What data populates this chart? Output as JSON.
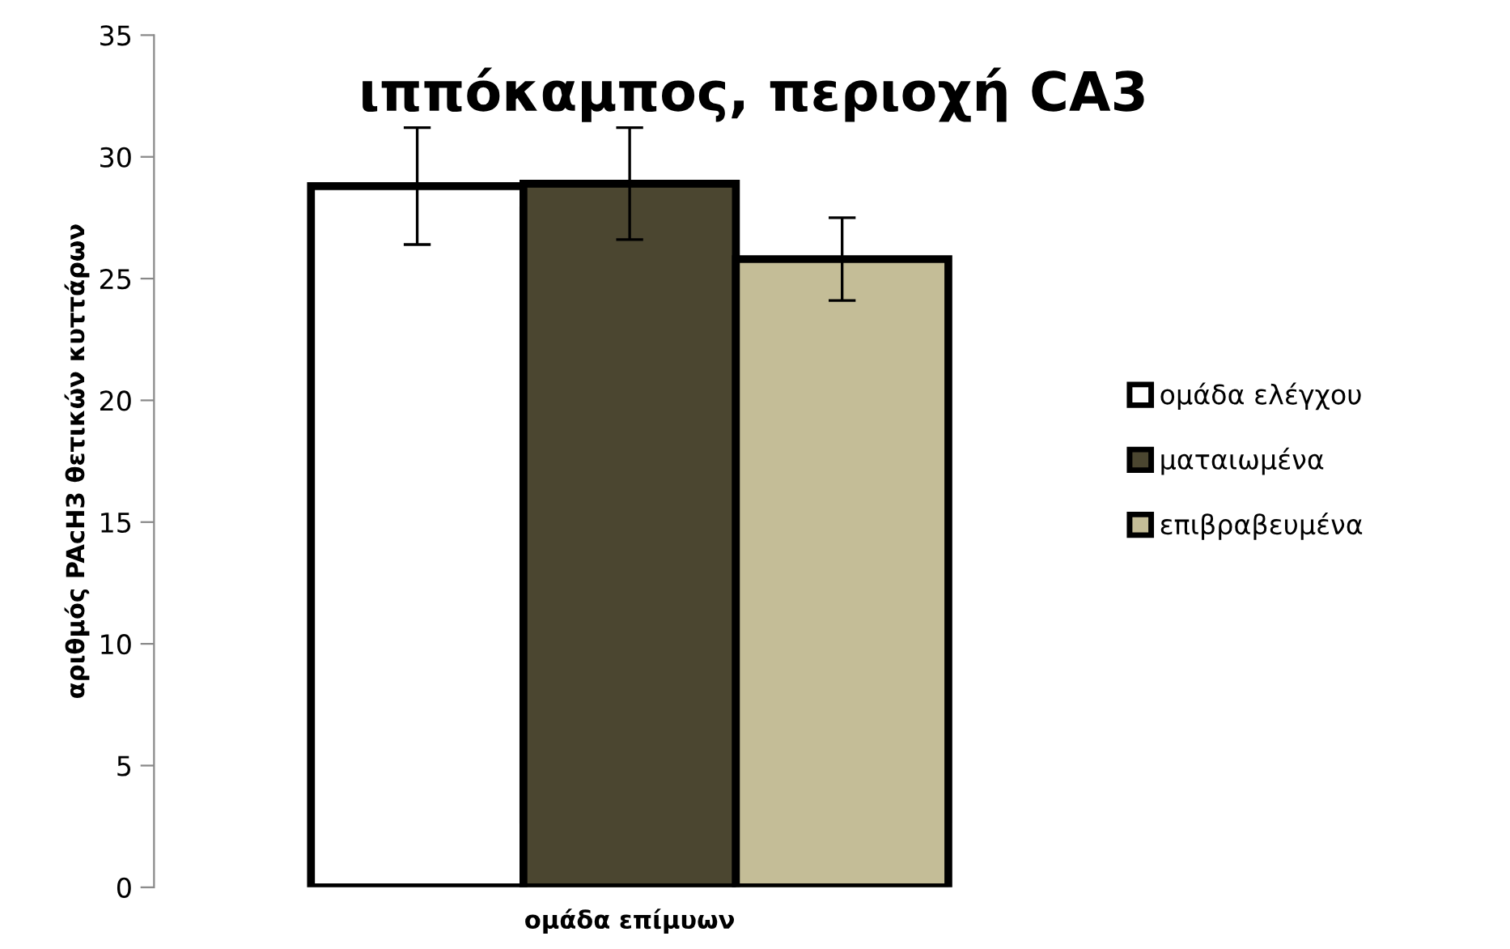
{
  "chart_data": {
    "type": "bar",
    "title": "ιππόκαμπος, περιοχή CA3",
    "xlabel": "ομάδα επίμυων",
    "ylabel": "αριθμός PAcH3 θετικών κυττάρων",
    "categories": [
      null
    ],
    "series": [
      {
        "name": "ομάδα ελέγχου",
        "color": "#ffffff",
        "values": [
          28.8
        ],
        "errors": [
          2.4
        ]
      },
      {
        "name": "ματαιωμένα",
        "color": "#4b4630",
        "values": [
          28.9
        ],
        "errors": [
          2.3
        ]
      },
      {
        "name": "επιβραβευμένα",
        "color": "#c4bd97",
        "values": [
          25.8
        ],
        "errors": [
          1.7
        ]
      }
    ],
    "ylim": [
      0,
      35
    ],
    "yticks": [
      0,
      5,
      10,
      15,
      20,
      25,
      30,
      35
    ],
    "grid": false,
    "legend": "right"
  }
}
